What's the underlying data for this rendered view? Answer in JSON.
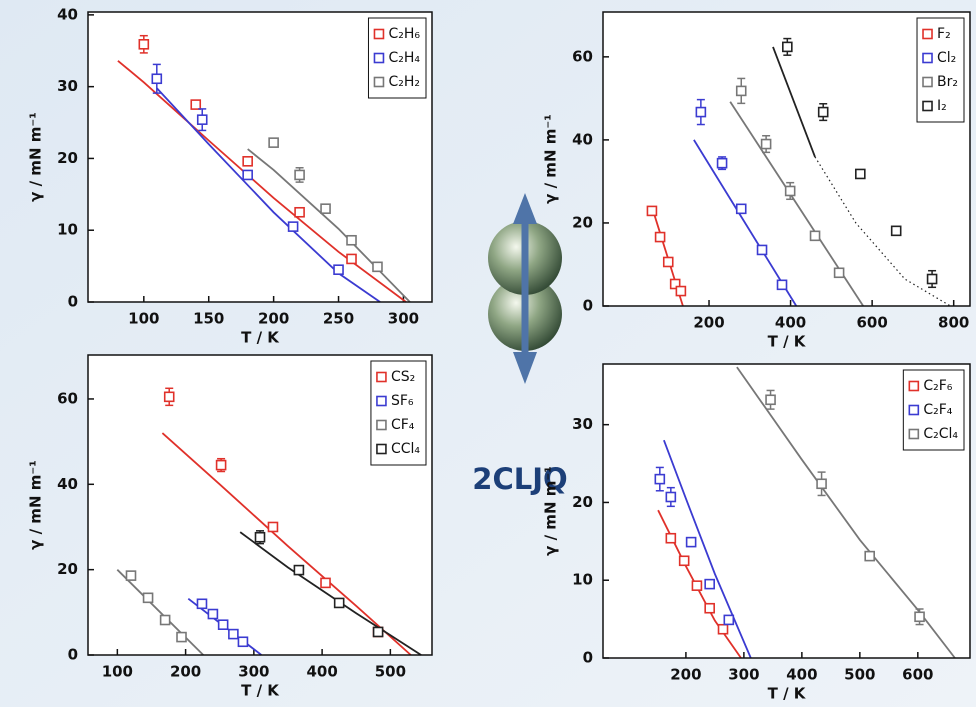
{
  "figure_label": "2CLJQ",
  "chart_data": [
    {
      "type": "scatter",
      "xlabel": "T / K",
      "ylabel": "γ / mN m⁻¹",
      "xlim": [
        57,
        322
      ],
      "ylim": [
        0,
        40.4
      ],
      "xticks": [
        100,
        150,
        200,
        250,
        300
      ],
      "yticks": [
        0,
        10,
        20,
        30,
        40
      ],
      "legend": "upper right",
      "series": [
        {
          "name": "C₂H₆",
          "color": "#e0312a",
          "x": [
            100,
            140,
            180,
            220,
            260
          ],
          "values": [
            35.9,
            27.5,
            19.6,
            12.5,
            6.0
          ],
          "errors": [
            1.2,
            null,
            null,
            null,
            null
          ],
          "fits": [
            {
              "style": "solid",
              "x": [
                80,
                100,
                150,
                200,
                250,
                302
              ],
              "values": [
                33.6,
                30.6,
                22.5,
                14.5,
                7.0,
                0
              ]
            }
          ]
        },
        {
          "name": "C₂H₄",
          "color": "#3b3bd1",
          "x": [
            110,
            145,
            180,
            215,
            250
          ],
          "values": [
            31.1,
            25.4,
            17.7,
            10.5,
            4.5
          ],
          "errors": [
            2.0,
            1.5,
            null,
            null,
            null
          ],
          "fits": [
            {
              "style": "solid",
              "x": [
                110,
                150,
                200,
                250,
                282
              ],
              "values": [
                29.8,
                22.0,
                12.5,
                4.0,
                0
              ]
            }
          ]
        },
        {
          "name": "C₂H₂",
          "color": "#777777",
          "x": [
            200,
            220,
            240,
            260,
            280
          ],
          "values": [
            22.2,
            17.7,
            13.0,
            8.6,
            4.9
          ],
          "errors": [
            null,
            1.0,
            null,
            null,
            null
          ],
          "fits": [
            {
              "style": "solid",
              "x": [
                180,
                200,
                250,
                305
              ],
              "values": [
                21.3,
                18.4,
                10.2,
                0
              ]
            }
          ]
        }
      ]
    },
    {
      "type": "scatter",
      "xlabel": "T / K",
      "ylabel": "γ / mN m⁻¹",
      "xlim": [
        -60,
        840
      ],
      "ylim": [
        0,
        70.8
      ],
      "xticks": [
        200,
        400,
        600,
        800
      ],
      "yticks": [
        0,
        20,
        40,
        60
      ],
      "legend": "upper right",
      "series": [
        {
          "name": "F₂",
          "color": "#e0312a",
          "x": [
            60,
            80,
            100,
            117,
            131
          ],
          "values": [
            22.9,
            16.6,
            10.6,
            5.3,
            3.6
          ],
          "errors": [
            null,
            null,
            null,
            null,
            null
          ],
          "fits": [
            {
              "style": "solid",
              "x": [
                60,
                136
              ],
              "values": [
                23.9,
                0
              ]
            }
          ]
        },
        {
          "name": "Cl₂",
          "color": "#3b3bd1",
          "x": [
            180,
            232,
            279,
            330,
            379
          ],
          "values": [
            46.7,
            34.4,
            23.4,
            13.5,
            5.1
          ],
          "errors": [
            3.0,
            1.5,
            null,
            null,
            null
          ],
          "fits": [
            {
              "style": "solid",
              "x": [
                163,
                414
              ],
              "values": [
                40,
                0
              ]
            }
          ]
        },
        {
          "name": "Br₂",
          "color": "#777777",
          "x": [
            279,
            340,
            399,
            460,
            519
          ],
          "values": [
            51.8,
            39.0,
            27.7,
            16.9,
            8.0
          ],
          "errors": [
            3.0,
            2.0,
            2.0,
            null,
            null
          ],
          "fits": [
            {
              "style": "solid",
              "x": [
                252,
                578
              ],
              "values": [
                49.2,
                0
              ]
            }
          ]
        },
        {
          "name": "I₂",
          "color": "#222222",
          "x": [
            392,
            480,
            571,
            659,
            747
          ],
          "values": [
            62.4,
            46.7,
            31.8,
            18.1,
            6.5
          ],
          "errors": [
            2.0,
            2.0,
            null,
            null,
            2.0
          ],
          "fits": [
            {
              "style": "solid",
              "x": [
                357,
                460
              ],
              "values": [
                62.4,
                35.9
              ]
            },
            {
              "style": "dotted",
              "x": [
                460,
                560,
                680,
                792
              ],
              "values": [
                35.9,
                20.0,
                6.5,
                0
              ]
            }
          ]
        }
      ]
    },
    {
      "type": "scatter",
      "xlabel": "T / K",
      "ylabel": "γ / mN m⁻¹",
      "xlim": [
        57,
        561
      ],
      "ylim": [
        0,
        70.3
      ],
      "xticks": [
        100,
        200,
        300,
        400,
        500
      ],
      "yticks": [
        0,
        20,
        40,
        60
      ],
      "legend": "upper right",
      "series": [
        {
          "name": "CS₂",
          "color": "#e0312a",
          "x": [
            176,
            252,
            328,
            405,
            482
          ],
          "values": [
            60.5,
            44.5,
            30.0,
            16.9,
            5.4
          ],
          "errors": [
            2.0,
            1.5,
            null,
            null,
            null
          ],
          "fits": [
            {
              "style": "solid",
              "x": [
                166,
                250,
                350,
                450,
                530
              ],
              "values": [
                52,
                40,
                25.5,
                11.5,
                0
              ]
            }
          ]
        },
        {
          "name": "SF₆",
          "color": "#3b3bd1",
          "x": [
            224,
            240,
            255,
            270,
            284
          ],
          "values": [
            12.0,
            9.6,
            7.1,
            4.9,
            3.1
          ],
          "errors": [
            null,
            null,
            null,
            null,
            null
          ],
          "fits": [
            {
              "style": "solid",
              "x": [
                204,
                311
              ],
              "values": [
                13.2,
                0
              ]
            }
          ]
        },
        {
          "name": "CF₄",
          "color": "#777777",
          "x": [
            120,
            145,
            170,
            194
          ],
          "values": [
            18.6,
            13.4,
            8.2,
            4.2
          ],
          "errors": [
            null,
            null,
            null,
            null
          ],
          "fits": [
            {
              "style": "solid",
              "x": [
                100,
                226
              ],
              "values": [
                20,
                0
              ]
            }
          ]
        },
        {
          "name": "CCl₄",
          "color": "#222222",
          "x": [
            309,
            366,
            425,
            482
          ],
          "values": [
            27.6,
            19.9,
            12.2,
            5.4
          ],
          "errors": [
            1.5,
            null,
            null,
            null
          ],
          "fits": [
            {
              "style": "solid",
              "x": [
                280,
                350,
                450,
                545
              ],
              "values": [
                28.8,
                20.5,
                9.8,
                0
              ]
            }
          ]
        }
      ]
    },
    {
      "type": "scatter",
      "xlabel": "T / K",
      "ylabel": "γ / mN m⁻¹",
      "xlim": [
        57,
        690
      ],
      "ylim": [
        0,
        37.8
      ],
      "xticks": [
        200,
        300,
        400,
        500,
        600
      ],
      "yticks": [
        0,
        10,
        20,
        30
      ],
      "legend": "upper right",
      "series": [
        {
          "name": "C₂F₆",
          "color": "#e0312a",
          "x": [
            174,
            197,
            219,
            241,
            264
          ],
          "values": [
            15.4,
            12.5,
            9.3,
            6.4,
            3.7
          ],
          "errors": [
            null,
            null,
            null,
            null,
            null
          ],
          "fits": [
            {
              "style": "solid",
              "x": [
                152,
                200,
                250,
                295
              ],
              "values": [
                19,
                11.8,
                4.8,
                0
              ]
            }
          ]
        },
        {
          "name": "C₂F₄",
          "color": "#3b3bd1",
          "x": [
            155,
            174,
            209,
            241,
            274
          ],
          "values": [
            23.0,
            20.7,
            14.9,
            9.5,
            4.9
          ],
          "errors": [
            1.5,
            1.2,
            null,
            null,
            null
          ],
          "fits": [
            {
              "style": "solid",
              "x": [
                162,
                200,
                250,
                312
              ],
              "values": [
                28,
                20.5,
                10.8,
                0
              ]
            }
          ]
        },
        {
          "name": "C₂Cl₄",
          "color": "#777777",
          "x": [
            346,
            434,
            517,
            603
          ],
          "values": [
            33.2,
            22.4,
            13.1,
            5.3
          ],
          "errors": [
            1.2,
            1.5,
            null,
            1.0
          ],
          "fits": [
            {
              "style": "solid",
              "x": [
                288,
                400,
                500,
                600,
                664
              ],
              "values": [
                37.4,
                25.5,
                15.2,
                6.2,
                0
              ]
            }
          ]
        }
      ]
    }
  ]
}
